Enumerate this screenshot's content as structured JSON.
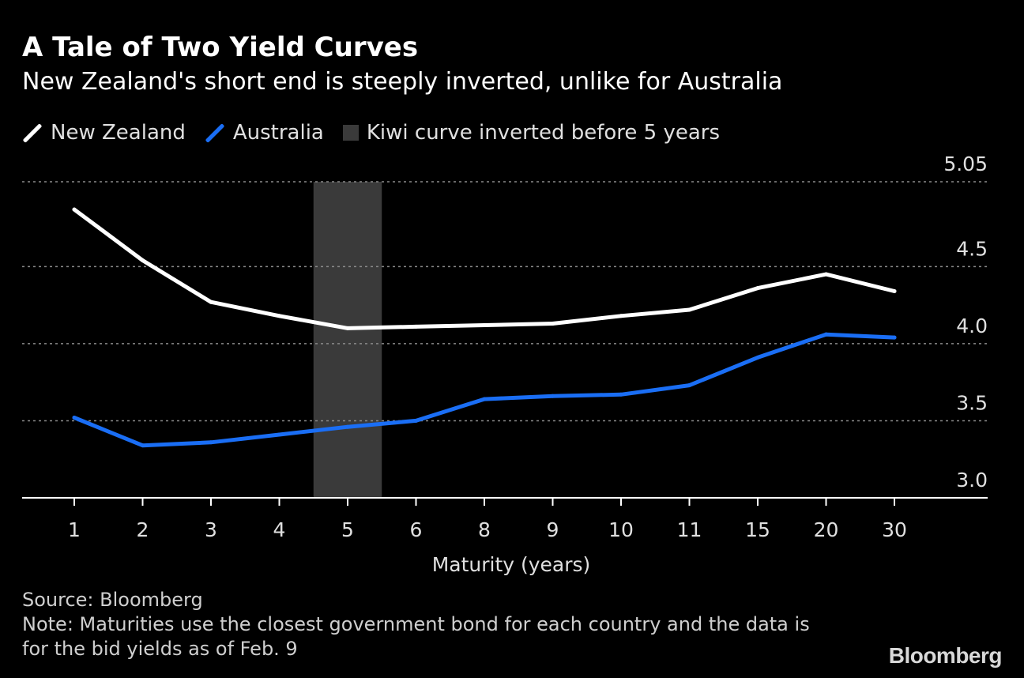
{
  "title": "A Tale of Two Yield Curves",
  "subtitle": "New Zealand's short end is steeply inverted, unlike for Australia",
  "legend": {
    "nz_label": "New Zealand",
    "au_label": "Australia",
    "band_label": "Kiwi curve inverted before 5 years"
  },
  "footer": {
    "source": "Source: Bloomberg",
    "note_line1": "Note: Maturities use the closest government bond for each country and the data is",
    "note_line2": "for the bid yields as of Feb. 9"
  },
  "brand": "Bloomberg",
  "colors": {
    "nz": "#ffffff",
    "au": "#1a6ef5",
    "band": "#3a3a3a",
    "grid": "#8a8a8a",
    "text": "#e0e0e0"
  },
  "chart_data": {
    "type": "line",
    "xlabel": "Maturity (years)",
    "ylabel": "",
    "categories": [
      "1",
      "2",
      "3",
      "4",
      "5",
      "6",
      "8",
      "9",
      "10",
      "11",
      "15",
      "20",
      "30"
    ],
    "ylim": [
      3.0,
      5.05
    ],
    "yticks": [
      3.0,
      3.5,
      4.0,
      4.5,
      5.05
    ],
    "ytick_labels": [
      "3.0",
      "3.5",
      "4.0",
      "4.5",
      "5.05"
    ],
    "y_axis_side": "right",
    "grid": true,
    "shaded_band": {
      "category": "5",
      "label": "Kiwi curve inverted before 5 years"
    },
    "series": [
      {
        "name": "New Zealand",
        "color": "#ffffff",
        "values": [
          4.87,
          4.54,
          4.27,
          4.18,
          4.1,
          4.11,
          4.12,
          4.13,
          4.18,
          4.22,
          4.36,
          4.45,
          4.34
        ]
      },
      {
        "name": "Australia",
        "color": "#1a6ef5",
        "values": [
          3.52,
          3.34,
          3.36,
          3.41,
          3.46,
          3.5,
          3.64,
          3.66,
          3.67,
          3.73,
          3.91,
          4.06,
          4.04
        ]
      }
    ]
  }
}
